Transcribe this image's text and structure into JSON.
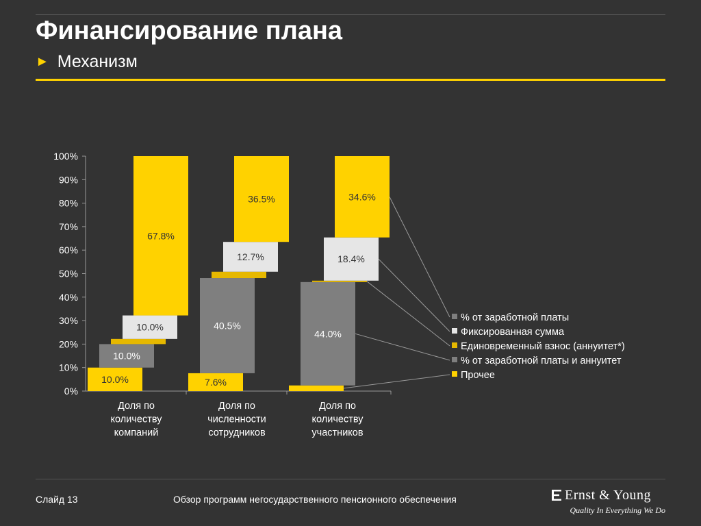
{
  "header": {
    "title": "Финансирование плана",
    "subtitle": "Механизм"
  },
  "footer": {
    "slide": "Слайд 13",
    "text": "Обзор программ негосударственного пенсионного обеспечения",
    "logo_name": "Ernst & Young",
    "logo_tagline": "Quality In Everything We Do"
  },
  "colors": {
    "background": "#333333",
    "accent_yellow": "#ffd200",
    "dark_yellow": "#e6b800",
    "light_gray": "#e6e6e6",
    "mid_gray": "#7f7f7f",
    "dark_gray": "#6a6a6a"
  },
  "chart_data": {
    "type": "bar",
    "stacking": "waterfall",
    "ylim": [
      0,
      100
    ],
    "yticks": [
      "0%",
      "10%",
      "20%",
      "30%",
      "40%",
      "50%",
      "60%",
      "70%",
      "80%",
      "90%",
      "100%"
    ],
    "categories": [
      "Доля по количеству компаний",
      "Доля по численности сотрудников",
      "Доля по количеству участников"
    ],
    "category_lines": [
      [
        "Доля по",
        "количеству",
        "компаний"
      ],
      [
        "Доля по",
        "численности",
        "сотрудников"
      ],
      [
        "Доля по",
        "количеству",
        "участников"
      ]
    ],
    "series": [
      {
        "name": "Прочее",
        "color": "#ffd200",
        "values": [
          10.0,
          7.6,
          2.4
        ],
        "labels": [
          "10.0%",
          "7.6%",
          ""
        ]
      },
      {
        "name": "% от заработной платы и аннуитет",
        "color": "#7f7f7f",
        "values": [
          10.0,
          40.5,
          44.0
        ],
        "labels": [
          "10.0%",
          "40.5%",
          "44.0%"
        ]
      },
      {
        "name": "Единовременный взнос (аннуитет*)",
        "color": "#e6b800",
        "values": [
          2.2,
          2.7,
          0.6
        ],
        "labels": [
          "",
          "",
          ""
        ]
      },
      {
        "name": "Фиксированная сумма",
        "color": "#e6e6e6",
        "values": [
          10.0,
          12.7,
          18.4
        ],
        "labels": [
          "10.0%",
          "12.7%",
          "18.4%"
        ]
      },
      {
        "name": "% от заработной платы",
        "color": "#ffd200",
        "values": [
          67.8,
          36.5,
          34.6
        ],
        "labels": [
          "67.8%",
          "36.5%",
          "34.6%"
        ]
      }
    ],
    "legend": [
      {
        "label": "% от заработной платы",
        "color": "#7f7f7f"
      },
      {
        "label": "Фиксированная сумма",
        "color": "#e6e6e6"
      },
      {
        "label": "Единовременный взнос (аннуитет*)",
        "color": "#e6b800"
      },
      {
        "label": "% от заработной платы и аннуитет",
        "color": "#7f7f7f"
      },
      {
        "label": "Прочее",
        "color": "#ffd200"
      }
    ],
    "legend_position": "right"
  }
}
